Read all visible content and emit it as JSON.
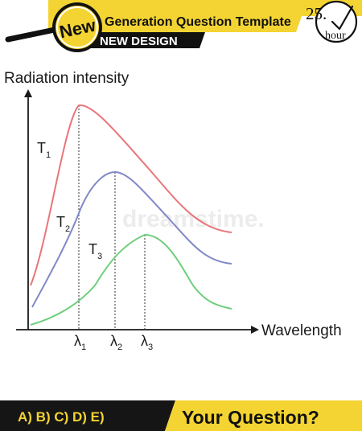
{
  "header": {
    "badge_label": "New",
    "title": "Generation Question Template",
    "subtitle": "NEW DESIGN",
    "timer_number": "25.",
    "timer_unit": "hour"
  },
  "chart": {
    "y_axis_label": "Radiation intensity",
    "x_axis_label": "Wavelength",
    "curves": [
      {
        "label_main": "T",
        "label_sub": "1",
        "color": "#e8767a"
      },
      {
        "label_main": "T",
        "label_sub": "2",
        "color": "#8088c8"
      },
      {
        "label_main": "T",
        "label_sub": "3",
        "color": "#6fce7b"
      }
    ],
    "peak_markers": [
      {
        "symbol": "λ",
        "sub": "1"
      },
      {
        "symbol": "λ",
        "sub": "2"
      },
      {
        "symbol": "λ",
        "sub": "3"
      }
    ]
  },
  "footer": {
    "options": "A) B) C) D) E)",
    "question": "Your Question?"
  },
  "colors": {
    "accent_yellow": "#f4d432",
    "dark": "#1a1a1a",
    "watermark": "#e8e8e8"
  },
  "watermark_text": "dreamstime."
}
